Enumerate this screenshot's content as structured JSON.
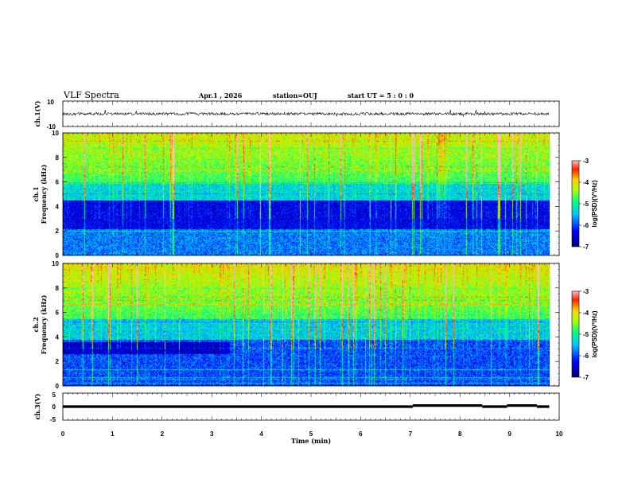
{
  "header": {
    "title": "VLF Spectra",
    "date": "Apr.1 , 2026",
    "station": "station=OUJ",
    "start": "start UT =  5 : 0 : 0"
  },
  "chart_data": [
    {
      "type": "line",
      "panel": "ch1-waveform",
      "ylabel": "ch.1(V)",
      "ylim": [
        -10,
        10
      ],
      "yticks": [
        "10",
        "-10"
      ],
      "xlim": [
        0,
        9.8
      ],
      "baseline": 0,
      "trace_color": "#000000"
    },
    {
      "type": "heatmap",
      "panel": "ch1-spectrogram",
      "ylabel_lines": [
        "ch.1",
        "Frequency (kHz)"
      ],
      "ylim": [
        0,
        10
      ],
      "yticks": [
        "0",
        "2",
        "4",
        "6",
        "8",
        "10"
      ],
      "xlim": [
        0,
        9.8
      ],
      "colorbar": {
        "label": "log(PSD)(V²/Hz)",
        "range": [
          -7,
          -3
        ],
        "ticks": [
          "-7",
          "-6",
          "-5",
          "-4",
          "-3"
        ]
      }
    },
    {
      "type": "heatmap",
      "panel": "ch2-spectrogram",
      "ylabel_lines": [
        "ch.2",
        "Frequency (kHz)"
      ],
      "ylim": [
        0,
        10
      ],
      "yticks": [
        "0",
        "2",
        "4",
        "6",
        "8",
        "10"
      ],
      "xlim": [
        0,
        9.8
      ],
      "colorbar": {
        "label": "log(PSD)(V²/Hz)",
        "range": [
          -7,
          -3
        ],
        "ticks": [
          "-7",
          "-6",
          "-5",
          "-4",
          "-3"
        ]
      }
    },
    {
      "type": "line",
      "panel": "ch3-waveform",
      "ylabel": "ch.3(V)",
      "ylim": [
        -5,
        5
      ],
      "yticks": [
        "5",
        "0",
        "-5"
      ],
      "xlabel": "Time (min)",
      "xlim": [
        0,
        10
      ],
      "xticks": [
        "0",
        "1",
        "2",
        "3",
        "4",
        "5",
        "6",
        "7",
        "8",
        "9",
        "10"
      ],
      "segments": [
        {
          "x": [
            0,
            7.05
          ],
          "y": 0
        },
        {
          "x": [
            7.05,
            8.45
          ],
          "y": 0.4
        },
        {
          "x": [
            8.45,
            8.95
          ],
          "y": 0
        },
        {
          "x": [
            8.95,
            9.55
          ],
          "y": 0.4
        },
        {
          "x": [
            9.55,
            9.8
          ],
          "y": 0
        }
      ]
    }
  ]
}
